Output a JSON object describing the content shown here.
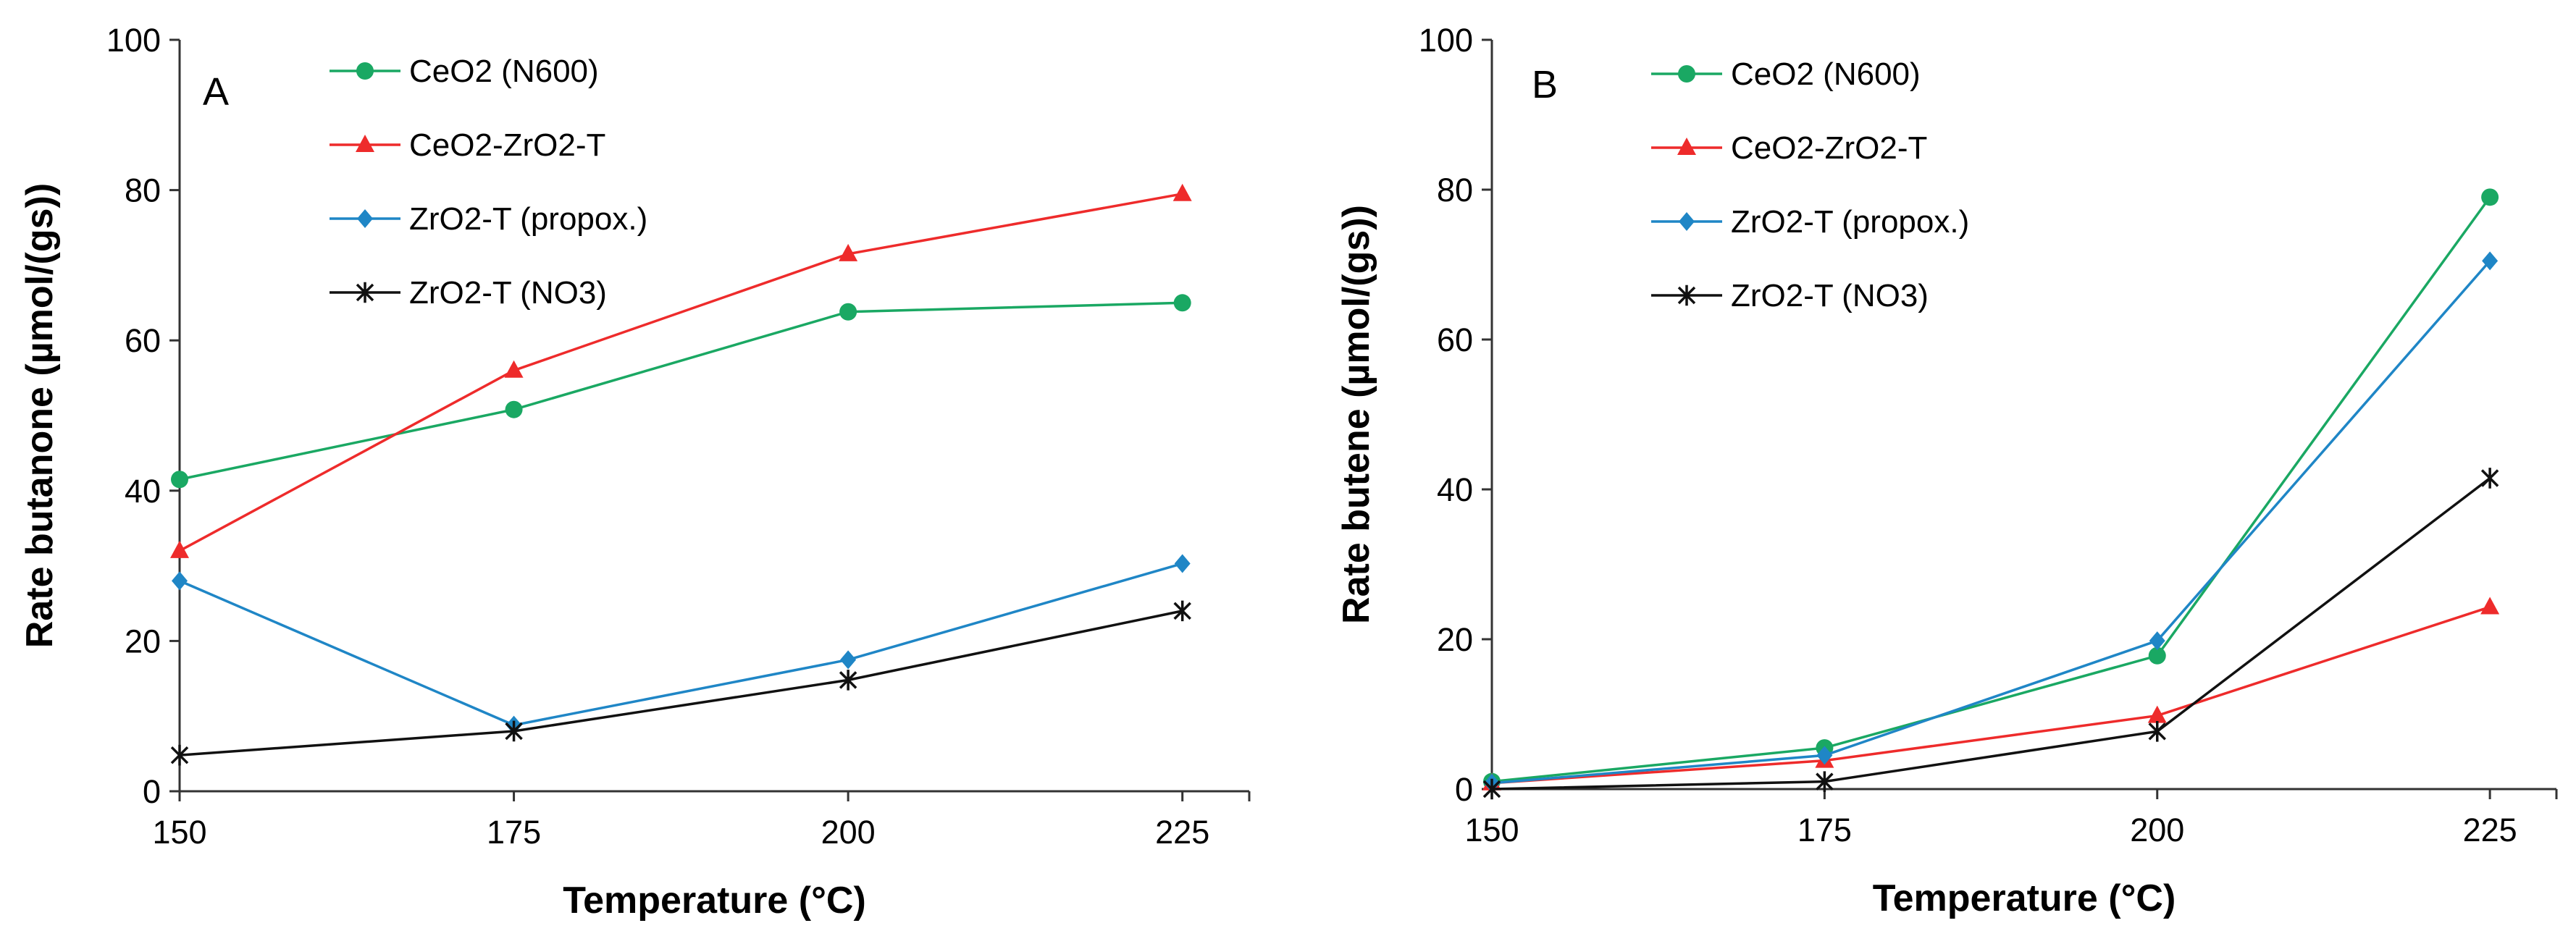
{
  "chart_data": [
    {
      "type": "line",
      "panel_label": "A",
      "xlabel": "Temperature (°C)",
      "ylabel": "Rate butanone (µmol/(gs))",
      "x": [
        150,
        175,
        200,
        225
      ],
      "xlim": [
        150,
        230
      ],
      "ylim": [
        0,
        100
      ],
      "yticks": [
        0,
        20,
        40,
        60,
        80,
        100
      ],
      "xticks": [
        150,
        175,
        200,
        225
      ],
      "legend_position": "top-center",
      "series": [
        {
          "name": "CeO2 (N600)",
          "color": "#1aa863",
          "marker": "circle",
          "values": [
            41.5,
            50.8,
            63.8,
            65
          ]
        },
        {
          "name": "CeO2-ZrO2-T",
          "color": "#ee2b2b",
          "marker": "triangle",
          "values": [
            32,
            56,
            71.5,
            79.5
          ]
        },
        {
          "name": "ZrO2-T (propox.)",
          "color": "#1f86c6",
          "marker": "diamond",
          "values": [
            28,
            8.8,
            17.5,
            30.3
          ]
        },
        {
          "name": "ZrO2-T (NO3)",
          "color": "#111111",
          "marker": "asterisk",
          "values": [
            4.8,
            8,
            14.8,
            24
          ]
        }
      ]
    },
    {
      "type": "line",
      "panel_label": "B",
      "xlabel": "Temperature (°C)",
      "ylabel": "Rate butene (µmol/(gs))",
      "x": [
        150,
        175,
        200,
        225
      ],
      "xlim": [
        150,
        230
      ],
      "ylim": [
        0,
        100
      ],
      "yticks": [
        0,
        20,
        40,
        60,
        80,
        100
      ],
      "xticks": [
        150,
        175,
        200,
        225
      ],
      "legend_position": "top-center",
      "series": [
        {
          "name": "CeO2 (N600)",
          "color": "#1aa863",
          "marker": "circle",
          "values": [
            1,
            5.5,
            17.8,
            79
          ]
        },
        {
          "name": "CeO2-ZrO2-T",
          "color": "#ee2b2b",
          "marker": "triangle",
          "values": [
            0.8,
            3.8,
            9.8,
            24.3
          ]
        },
        {
          "name": "ZrO2-T (propox.)",
          "color": "#1f86c6",
          "marker": "diamond",
          "values": [
            0.8,
            4.5,
            19.8,
            70.5
          ]
        },
        {
          "name": "ZrO2-T (NO3)",
          "color": "#111111",
          "marker": "asterisk",
          "values": [
            0,
            1,
            7.7,
            41.5
          ]
        }
      ]
    }
  ]
}
